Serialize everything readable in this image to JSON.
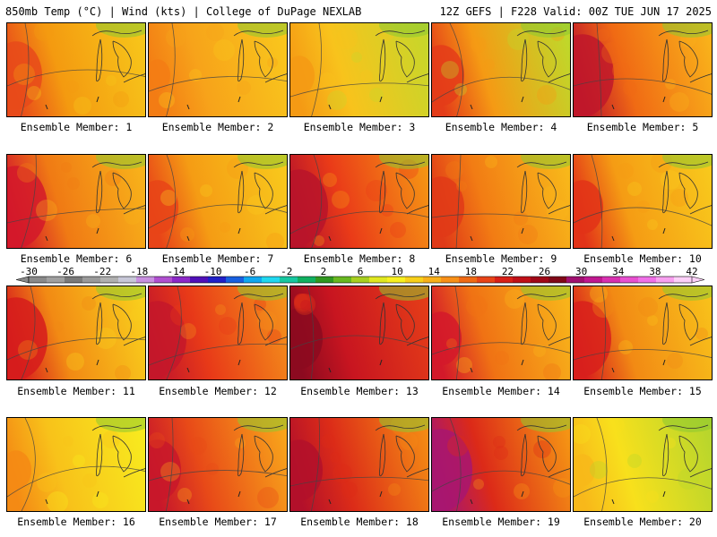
{
  "header": {
    "left": "850mb Temp (°C) | Wind (kts) | College of DuPage NEXLAB",
    "right": "12Z GEFS | F228 Valid: 00Z TUE JUN 17 2025"
  },
  "member_prefix": "Ensemble Member: ",
  "members": [
    {
      "id": "1",
      "label": "Ensemble Member: 1",
      "palette": [
        "#e84a1a",
        "#f49a10",
        "#f7c51a"
      ],
      "hot_west": 0.7
    },
    {
      "id": "2",
      "label": "Ensemble Member: 2",
      "palette": [
        "#f37c14",
        "#f7a31a",
        "#f9c61c"
      ],
      "hot_west": 0.2
    },
    {
      "id": "3",
      "label": "Ensemble Member: 3",
      "palette": [
        "#f59a14",
        "#f8c31c",
        "#c8d62a"
      ],
      "hot_west": 0.3
    },
    {
      "id": "4",
      "label": "Ensemble Member: 4",
      "palette": [
        "#e43c19",
        "#f59a14",
        "#c0d82a"
      ],
      "hot_west": 0.6
    },
    {
      "id": "5",
      "label": "Ensemble Member: 5",
      "palette": [
        "#c0172a",
        "#f06a14",
        "#f9b21a"
      ],
      "hot_west": 0.9
    },
    {
      "id": "6",
      "label": "Ensemble Member: 6",
      "palette": [
        "#d3192a",
        "#f07a14",
        "#f8b21a"
      ],
      "hot_west": 0.9
    },
    {
      "id": "7",
      "label": "Ensemble Member: 7",
      "palette": [
        "#e84418",
        "#f59c14",
        "#f8c81c"
      ],
      "hot_west": 0.5
    },
    {
      "id": "8",
      "label": "Ensemble Member: 8",
      "palette": [
        "#b8142a",
        "#ea3b18",
        "#f59414"
      ],
      "hot_west": 0.8
    },
    {
      "id": "9",
      "label": "Ensemble Member: 9",
      "palette": [
        "#e03a18",
        "#f27c14",
        "#f8b81a"
      ],
      "hot_west": 0.6
    },
    {
      "id": "10",
      "label": "Ensemble Member: 10",
      "palette": [
        "#e23318",
        "#f59c14",
        "#f8c81c"
      ],
      "hot_west": 0.5
    },
    {
      "id": "11",
      "label": "Ensemble Member: 11",
      "palette": [
        "#d61c1c",
        "#f28a14",
        "#f9cf1c"
      ],
      "hot_west": 0.9
    },
    {
      "id": "12",
      "label": "Ensemble Member: 12",
      "palette": [
        "#c4172a",
        "#e83a18",
        "#f4901a"
      ],
      "hot_west": 0.8
    },
    {
      "id": "13",
      "label": "Ensemble Member: 13",
      "palette": [
        "#8c0a20",
        "#c81520",
        "#e43c18"
      ],
      "hot_west": 0.6
    },
    {
      "id": "14",
      "label": "Ensemble Member: 14",
      "palette": [
        "#d3192a",
        "#f07214",
        "#f8b41a"
      ],
      "hot_west": 0.5
    },
    {
      "id": "15",
      "label": "Ensemble Member: 15",
      "palette": [
        "#d8201c",
        "#f28a14",
        "#f8c01a"
      ],
      "hot_west": 0.8
    },
    {
      "id": "16",
      "label": "Ensemble Member: 16",
      "palette": [
        "#f48a14",
        "#f8c21a",
        "#f8ea1e"
      ],
      "hot_west": 0.3
    },
    {
      "id": "17",
      "label": "Ensemble Member: 17",
      "palette": [
        "#c8172a",
        "#e84a18",
        "#f8a41a"
      ],
      "hot_west": 0.6
    },
    {
      "id": "18",
      "label": "Ensemble Member: 18",
      "palette": [
        "#b3102a",
        "#dc2c18",
        "#f48a14"
      ],
      "hot_west": 0.6
    },
    {
      "id": "19",
      "label": "Ensemble Member: 19",
      "palette": [
        "#a81670",
        "#dc2a18",
        "#f59414"
      ],
      "hot_west": 0.9
    },
    {
      "id": "20",
      "label": "Ensemble Member: 20",
      "palette": [
        "#f8b81a",
        "#f8e01c",
        "#b8d62c"
      ],
      "hot_west": 0.2
    }
  ],
  "colorbar": {
    "ticks": [
      "-30",
      "-26",
      "-22",
      "-18",
      "-14",
      "-10",
      "-6",
      "-2",
      "2",
      "6",
      "10",
      "14",
      "18",
      "22",
      "26",
      "30",
      "34",
      "38",
      "42"
    ],
    "colors": [
      "#8a8a8a",
      "#a0a0a0",
      "#7a7a7a",
      "#9a9a9a",
      "#b0b0b0",
      "#c8c8d8",
      "#c890e0",
      "#b050d0",
      "#8c28c8",
      "#5010b8",
      "#2020c8",
      "#1860e0",
      "#10a8f0",
      "#20d8f0",
      "#18c8a0",
      "#10b060",
      "#309820",
      "#68b820",
      "#a8d020",
      "#e0e820",
      "#f8f020",
      "#f8d01a",
      "#f8b01a",
      "#f89018",
      "#f06a14",
      "#e84418",
      "#d82018",
      "#c01018",
      "#a00818",
      "#800818",
      "#a01070",
      "#c01890",
      "#d830b0",
      "#e850d0",
      "#f070e8",
      "#f8a0f0",
      "#fcd0f8"
    ]
  }
}
